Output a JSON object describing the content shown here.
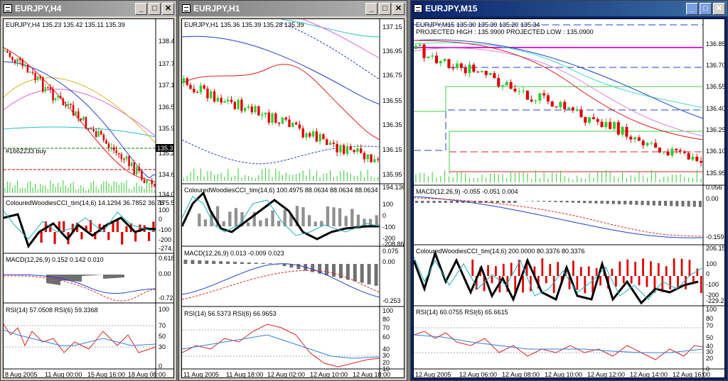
{
  "windows": [
    {
      "title": "EURJPY,H4",
      "price_header": "EURJPY,H4  135.23 135.42 135.11 135.39",
      "price_axis": [
        "138.40",
        "137.75",
        "137.15",
        "136.50",
        "135.90",
        "135.25",
        "134.65",
        "134.05"
      ],
      "current_price": "135.39",
      "order_label": "#1662233 buy",
      "cci_header": "ColouredWoodiesCCI_tim(14,6) 14.1294 36.7852 36.78",
      "cci_axis": [
        "175.57",
        "100",
        "0",
        "-100",
        "-200",
        "-274.15"
      ],
      "macd_header": "MACD(12,26,9) 0.152 0.142 0.010",
      "macd_axis": [
        "0.618",
        "0.00",
        "-0.724"
      ],
      "rsi_header": "RSI(14) 57.0508  RSI(6) 59.3368",
      "rsi_axis": [
        "100",
        "70",
        "50",
        "30",
        "0"
      ],
      "time_axis": [
        "8 Aug 2005",
        "11 Aug 00:00",
        "15 Aug 16:00",
        "18 Aug 08:00"
      ]
    },
    {
      "title": "EURJPY,H1",
      "price_header": "EURJPY,H1  135.36 135.39 135.28 135.39",
      "price_axis": [
        "137.15",
        "136.95",
        "136.75",
        "136.55",
        "136.35",
        "136.15",
        "135.95"
      ],
      "cci_header": "ColouredWoodiesCCI_tim(14,6) 100.4975 88.0634 88.0634 88.0634",
      "cci_axis": [
        "194.1364",
        "100",
        "0",
        "-100",
        "-200",
        "-208.863"
      ],
      "macd_header": "MACD(12,26,9) 0.013 -0.009 0.023",
      "macd_axis": [
        "0.075",
        "0.00",
        "-0.253"
      ],
      "rsi_header": "RSI(14) 56.5373  RSI(6) 66.9653",
      "rsi_axis": [
        "100",
        "80",
        "70",
        "60",
        "40",
        "30",
        "20",
        "10"
      ],
      "time_axis": [
        "11 Aug 2005",
        "11 Aug 18:00",
        "12 Aug 02:00",
        "12 Aug 10:00",
        "12 Aug 18:00"
      ]
    },
    {
      "title": "EURJPY,M15",
      "price_header": "EURJPY,M15  135.30 135.39 135.20 135.34",
      "projection": "PROJECTED HIGH : 135.9900   PROJECTED LOW : 135.0900",
      "price_axis": [
        "136.85",
        "136.70",
        "136.55",
        "136.40",
        "136.25",
        "136.10",
        "135.95"
      ],
      "macd_header": "MACD(12,26,9) -0.055 -0.051 0.004",
      "macd_axis": [
        "0.056",
        "0.00",
        "-0.159"
      ],
      "cci_header": "ColouredWoodiesCCI_tim(14,6) 200.0000 80.3376 80.3376",
      "cci_axis": [
        "206.1563",
        "100",
        "0",
        "-100",
        "-200",
        "-229.281"
      ],
      "rsi_header": "RSI(14) 60.0755  RSI(6) 65.6615",
      "rsi_axis": [
        "100",
        "80",
        "70",
        "50",
        "40",
        "30",
        "20",
        "0"
      ],
      "time_axis": [
        "12 Aug 2005",
        "12 Aug 06:00",
        "12 Aug 08:00",
        "12 Aug 10:00",
        "12 Aug 12:00",
        "12 Aug 14:00",
        "12 Aug 16:00"
      ]
    }
  ],
  "buttons": {
    "minimize": "_",
    "maximize": "□",
    "close": "✕"
  },
  "colors": {
    "bull": "#32cd32",
    "bear": "#e00000",
    "macd_hist": "#808080",
    "blue": "#1f3fd0",
    "red": "#e02020",
    "cyan": "#20b0c0"
  }
}
